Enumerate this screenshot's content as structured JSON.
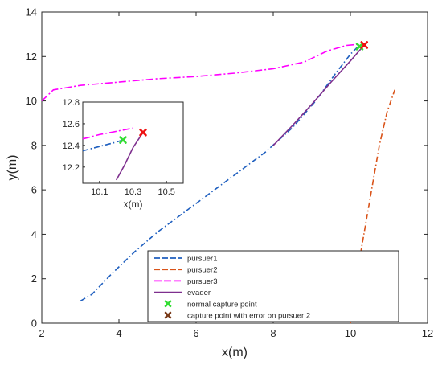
{
  "chart_data": {
    "type": "line",
    "xlabel": "x(m)",
    "ylabel": "y(m)",
    "xlim": [
      2,
      12
    ],
    "ylim": [
      0,
      14
    ],
    "xticks": [
      "2",
      "4",
      "6",
      "8",
      "10",
      "12"
    ],
    "yticks": [
      "0",
      "2",
      "4",
      "6",
      "8",
      "10",
      "12",
      "14"
    ],
    "grid": false,
    "legend_position": "bottom-center",
    "legend": [
      "pursuer1",
      "pursuer2",
      "pursuer3",
      "evader",
      "normal capture point",
      "capture point with error on pursuer 2"
    ],
    "series": [
      {
        "name": "pursuer1",
        "color": "#1f5fbf",
        "style": "dashed / dash-dot",
        "x": [
          3.0,
          3.3,
          3.8,
          4.4,
          5.0,
          5.7,
          6.4,
          7.1,
          7.8,
          8.5,
          9.1,
          9.6,
          10.0,
          10.2
        ],
        "y": [
          1.0,
          1.3,
          2.2,
          3.2,
          4.1,
          5.0,
          5.9,
          6.8,
          7.7,
          8.8,
          10.0,
          11.2,
          12.1,
          12.45
        ]
      },
      {
        "name": "pursuer2",
        "color": "#d95319",
        "style": "dashed / dash-dot",
        "x": [
          10.0,
          10.15,
          10.35,
          10.55,
          10.75,
          10.95,
          11.15
        ],
        "y": [
          0.0,
          2.0,
          4.0,
          6.0,
          8.0,
          9.5,
          10.5
        ]
      },
      {
        "name": "pursuer3",
        "color": "#ff00ff",
        "style": "dashed / dash-dot",
        "x": [
          2.0,
          2.3,
          3.0,
          4.0,
          5.0,
          6.0,
          7.0,
          8.0,
          8.8,
          9.4,
          9.9,
          10.2
        ],
        "y": [
          10.0,
          10.5,
          10.7,
          10.85,
          11.0,
          11.1,
          11.25,
          11.45,
          11.75,
          12.25,
          12.5,
          12.55
        ]
      },
      {
        "name": "evader",
        "color": "#7e2f8e",
        "style": "solid",
        "x": [
          8.0,
          8.5,
          9.0,
          9.5,
          10.0,
          10.35
        ],
        "y": [
          8.0,
          8.9,
          9.85,
          10.85,
          11.8,
          12.5
        ]
      }
    ],
    "points": [
      {
        "name": "normal capture point",
        "color": "#33dd33",
        "x": 10.24,
        "y": 12.45
      },
      {
        "name": "capture point with error on pursuer 2",
        "color": "#ee1111",
        "x": 10.36,
        "y": 12.52
      }
    ],
    "inset": {
      "xlabel": "x(m)",
      "xlim": [
        10,
        10.6
      ],
      "ylim": [
        12.05,
        12.8
      ],
      "xticks": [
        "10.1",
        "10.3",
        "10.5"
      ],
      "yticks": [
        "12.2",
        "12.4",
        "12.6",
        "12.8"
      ],
      "series": [
        {
          "name": "pursuer1",
          "x": [
            10.0,
            10.1,
            10.2,
            10.24
          ],
          "y": [
            12.35,
            12.39,
            12.43,
            12.45
          ]
        },
        {
          "name": "pursuer3",
          "x": [
            10.0,
            10.1,
            10.2,
            10.3
          ],
          "y": [
            12.46,
            12.5,
            12.53,
            12.56
          ]
        },
        {
          "name": "evader",
          "x": [
            10.2,
            10.25,
            10.3,
            10.36
          ],
          "y": [
            12.08,
            12.22,
            12.38,
            12.52
          ]
        }
      ]
    }
  }
}
